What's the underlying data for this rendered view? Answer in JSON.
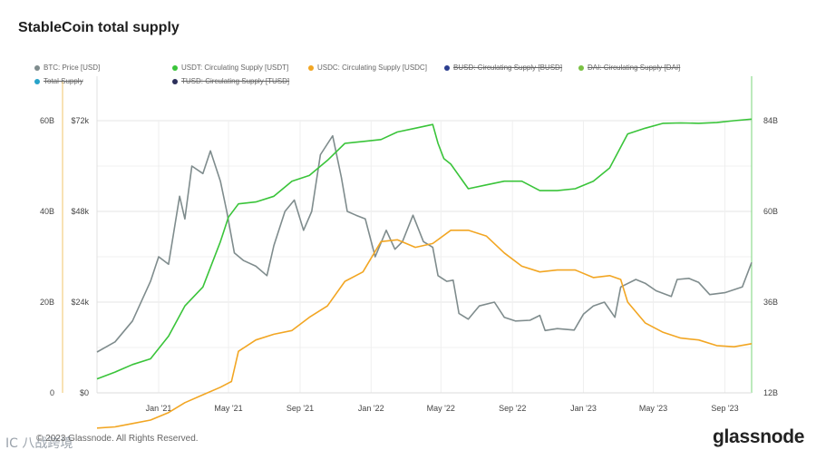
{
  "title": "StableCoin total supply",
  "legend": [
    {
      "label": "BTC: Price [USD]",
      "color": "#7f8c8d",
      "active": true
    },
    {
      "label": "USDT: Circulating Supply [USDT]",
      "color": "#3ac43a",
      "active": true
    },
    {
      "label": "USDC: Circulating Supply [USDC]",
      "color": "#f2a623",
      "active": true
    },
    {
      "label": "BUSD: Circulating Supply [BUSD]",
      "color": "#2c3e8f",
      "active": false
    },
    {
      "label": "DAI: Circulating Supply [DAI]",
      "color": "#7ac143",
      "active": false
    },
    {
      "label": "Total Supply",
      "color": "#27a3c9",
      "active": false
    },
    {
      "label": "TUSD: Circulating Supply [TUSD]",
      "color": "#2c2f5a",
      "active": false
    }
  ],
  "footer": {
    "copyright": "© 2023 Glassnode. All Rights Reserved.",
    "brand": "glassnode",
    "watermark": "IC 八战跨境"
  },
  "chart_data": {
    "type": "line",
    "x_axis": {
      "ticks": [
        "Jan '21",
        "May '21",
        "Sep '21",
        "Jan '22",
        "May '22",
        "Sep '22",
        "Jan '23",
        "May '23",
        "Sep '23"
      ],
      "range": [
        "2020-10-01",
        "2023-10-31"
      ]
    },
    "y_axes": {
      "left_supply": {
        "ticks": [
          "0",
          "20B",
          "40B",
          "60B"
        ],
        "range": [
          0,
          60000000000
        ]
      },
      "left_price": {
        "ticks": [
          "$0",
          "$24k",
          "$48k",
          "$72k"
        ],
        "range": [
          0,
          72000
        ]
      },
      "right_supply": {
        "ticks": [
          "12B",
          "36B",
          "60B",
          "84B"
        ],
        "range": [
          12000000000,
          84000000000
        ]
      }
    },
    "grid": true,
    "series": [
      {
        "name": "BTC: Price [USD]",
        "axis": "left_price",
        "color": "#7f8c8d",
        "x": [
          "2020-10-01",
          "2020-11-01",
          "2020-12-01",
          "2021-01-01",
          "2021-01-15",
          "2021-02-01",
          "2021-02-20",
          "2021-03-01",
          "2021-03-13",
          "2021-04-01",
          "2021-04-14",
          "2021-05-01",
          "2021-05-12",
          "2021-05-25",
          "2021-06-10",
          "2021-07-01",
          "2021-07-20",
          "2021-08-01",
          "2021-08-20",
          "2021-09-05",
          "2021-09-21",
          "2021-10-05",
          "2021-10-20",
          "2021-11-10",
          "2021-11-25",
          "2021-12-05",
          "2021-12-20",
          "2022-01-05",
          "2022-01-22",
          "2022-02-10",
          "2022-02-25",
          "2022-03-10",
          "2022-03-28",
          "2022-04-15",
          "2022-05-01",
          "2022-05-10",
          "2022-05-25",
          "2022-06-05",
          "2022-06-15",
          "2022-07-01",
          "2022-07-20",
          "2022-08-15",
          "2022-09-01",
          "2022-09-20",
          "2022-10-15",
          "2022-11-01",
          "2022-11-10",
          "2022-12-01",
          "2022-12-30",
          "2023-01-15",
          "2023-02-01",
          "2023-02-20",
          "2023-03-10",
          "2023-03-20",
          "2023-04-15",
          "2023-05-01",
          "2023-05-20",
          "2023-06-15",
          "2023-06-25",
          "2023-07-15",
          "2023-08-01",
          "2023-08-20",
          "2023-09-15",
          "2023-10-15",
          "2023-10-31"
        ],
        "values": [
          10800,
          13500,
          19000,
          29500,
          36000,
          34000,
          52000,
          46000,
          60000,
          58000,
          64000,
          56000,
          48000,
          37000,
          35000,
          33500,
          31000,
          39000,
          48000,
          51000,
          43000,
          48000,
          63000,
          68000,
          57000,
          48000,
          47000,
          46000,
          36000,
          43000,
          38000,
          40000,
          47000,
          40000,
          38500,
          31000,
          29500,
          29800,
          21000,
          19500,
          23000,
          24000,
          20000,
          19000,
          19200,
          20500,
          16500,
          17000,
          16600,
          20800,
          23000,
          24000,
          20000,
          28000,
          30000,
          29000,
          27000,
          25500,
          30000,
          30300,
          29200,
          26000,
          26500,
          28000,
          34500
        ]
      },
      {
        "name": "USDT: Circulating Supply [USDT]",
        "axis": "left_supply",
        "color": "#3ac43a",
        "x": [
          "2020-10-01",
          "2020-11-01",
          "2020-12-01",
          "2021-01-01",
          "2021-02-01",
          "2021-03-01",
          "2021-04-01",
          "2021-05-01",
          "2021-05-15",
          "2021-06-01",
          "2021-07-01",
          "2021-08-01",
          "2021-09-01",
          "2021-10-01",
          "2021-11-01",
          "2021-12-01",
          "2022-01-01",
          "2022-02-01",
          "2022-03-01",
          "2022-04-01",
          "2022-05-01",
          "2022-05-10",
          "2022-05-20",
          "2022-06-01",
          "2022-07-01",
          "2022-08-01",
          "2022-09-01",
          "2022-10-01",
          "2022-11-01",
          "2022-12-01",
          "2023-01-01",
          "2023-02-01",
          "2023-03-01",
          "2023-04-01",
          "2023-05-01",
          "2023-06-01",
          "2023-07-01",
          "2023-08-01",
          "2023-09-01",
          "2023-10-01",
          "2023-10-31"
        ],
        "values": [
          15700,
          17500,
          19500,
          21000,
          27000,
          35000,
          40000,
          52000,
          58500,
          62000,
          62500,
          64000,
          68000,
          69500,
          73500,
          78000,
          78500,
          79000,
          81000,
          82000,
          83000,
          78000,
          74000,
          72500,
          66000,
          67000,
          68000,
          68000,
          65500,
          65500,
          66000,
          68000,
          71500,
          80500,
          82000,
          83300,
          83400,
          83300,
          83500,
          84000,
          84400
        ]
      },
      {
        "name": "USDC: Circulating Supply [USDC]",
        "axis": "left_supply",
        "color": "#f2a623",
        "x": [
          "2020-10-01",
          "2020-11-01",
          "2020-12-01",
          "2021-01-01",
          "2021-02-01",
          "2021-03-01",
          "2021-04-01",
          "2021-05-01",
          "2021-05-20",
          "2021-06-01",
          "2021-07-01",
          "2021-08-01",
          "2021-09-01",
          "2021-10-01",
          "2021-11-01",
          "2021-12-01",
          "2022-01-01",
          "2022-02-01",
          "2022-03-01",
          "2022-04-01",
          "2022-05-01",
          "2022-06-01",
          "2022-07-01",
          "2022-08-01",
          "2022-09-01",
          "2022-10-01",
          "2022-11-01",
          "2022-12-01",
          "2023-01-01",
          "2023-02-01",
          "2023-03-01",
          "2023-03-20",
          "2023-04-01",
          "2023-05-01",
          "2023-06-01",
          "2023-07-01",
          "2023-08-01",
          "2023-09-01",
          "2023-10-01",
          "2023-10-31"
        ],
        "values": [
          2700,
          3000,
          3900,
          4800,
          6800,
          9400,
          11500,
          13500,
          15000,
          23000,
          26000,
          27500,
          28500,
          32000,
          35000,
          41500,
          44000,
          52000,
          52500,
          50500,
          51500,
          55000,
          55000,
          53500,
          49000,
          45500,
          44000,
          44500,
          44500,
          42500,
          43000,
          42000,
          36000,
          30500,
          28000,
          26500,
          26000,
          24500,
          24200,
          25000
        ]
      }
    ]
  }
}
